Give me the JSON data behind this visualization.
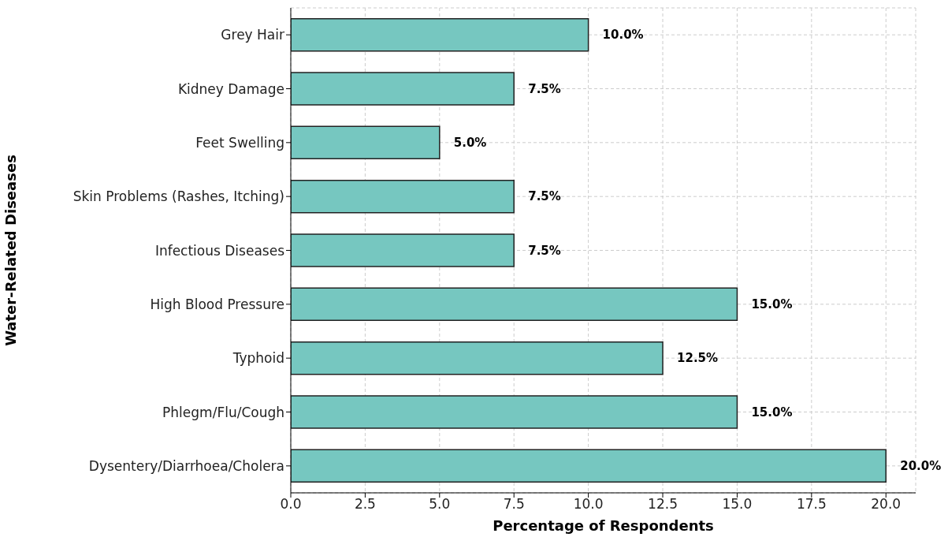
{
  "chart_data": {
    "type": "bar",
    "orientation": "horizontal",
    "xlabel": "Percentage of Respondents",
    "ylabel": "Water-Related Diseases",
    "categories": [
      "Grey Hair",
      "Kidney Damage",
      "Feet Swelling",
      "Skin Problems (Rashes, Itching)",
      "Infectious Diseases",
      "High Blood Pressure",
      "Typhoid",
      "Phlegm/Flu/Cough",
      "Dysentery/Diarrhoea/Cholera"
    ],
    "values": [
      10.0,
      7.5,
      5.0,
      7.5,
      7.5,
      15.0,
      12.5,
      15.0,
      20.0
    ],
    "value_labels": [
      "10.0%",
      "7.5%",
      "5.0%",
      "7.5%",
      "7.5%",
      "15.0%",
      "12.5%",
      "15.0%",
      "20.0%"
    ],
    "color": "#76c7c0",
    "xlim": [
      0,
      21
    ],
    "xticks": [
      {
        "value": 0,
        "label": "0.0"
      },
      {
        "value": 2.5,
        "label": "2.5"
      },
      {
        "value": 5,
        "label": "5.0"
      },
      {
        "value": 7.5,
        "label": "7.5"
      },
      {
        "value": 10,
        "label": "10.0"
      },
      {
        "value": 12.5,
        "label": "12.5"
      },
      {
        "value": 15,
        "label": "15.0"
      },
      {
        "value": 17.5,
        "label": "17.5"
      },
      {
        "value": 20,
        "label": "20.0"
      }
    ],
    "grid": true
  }
}
